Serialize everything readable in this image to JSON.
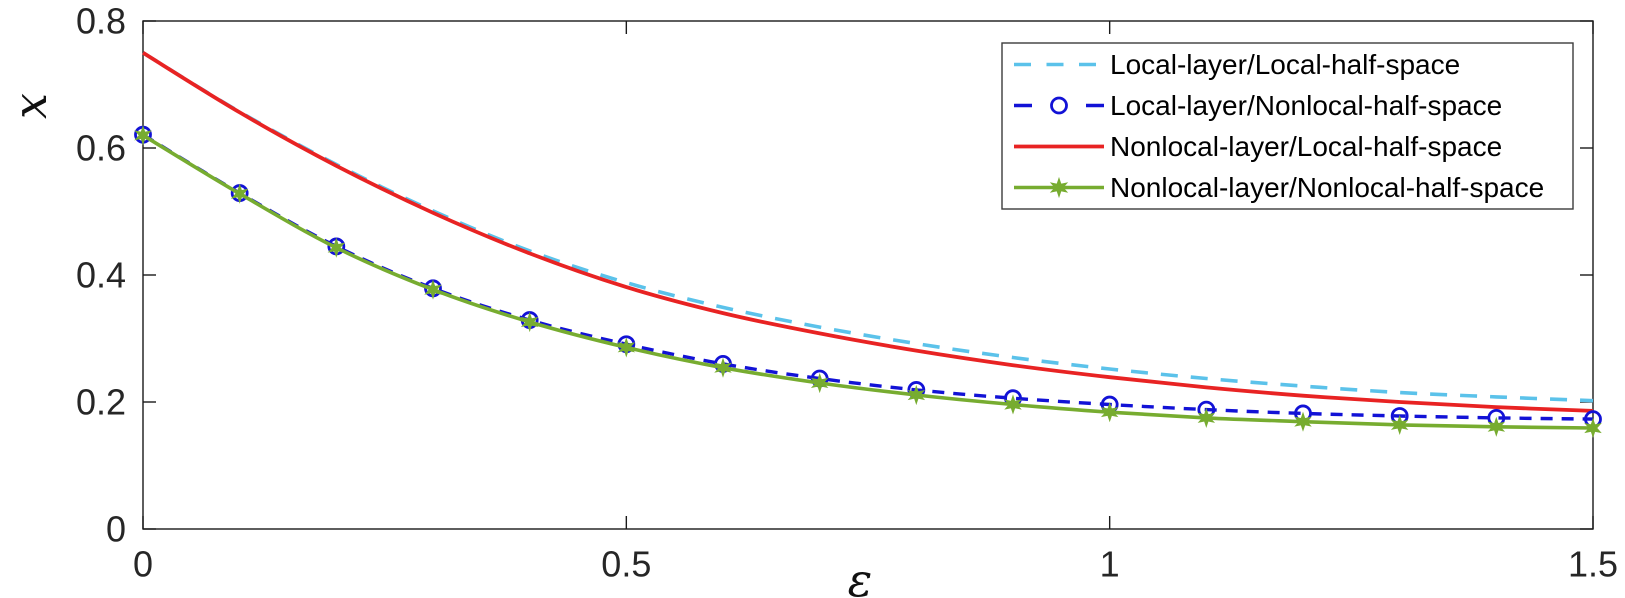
{
  "chart_data": {
    "type": "line",
    "title": "",
    "xlabel": "ε",
    "ylabel": "x",
    "xlim": [
      0,
      1.5
    ],
    "ylim": [
      0,
      0.8
    ],
    "xticks": [
      0,
      0.5,
      1,
      1.5
    ],
    "xtick_labels": [
      "0",
      "0.5",
      "1",
      "1.5"
    ],
    "yticks": [
      0,
      0.2,
      0.4,
      0.6,
      0.8
    ],
    "ytick_labels": [
      "0",
      "0.2",
      "0.4",
      "0.6",
      "0.8"
    ],
    "grid": false,
    "box": true,
    "axis_color": "#1a1a1a",
    "tick_label_color": "#262626",
    "background": "#ffffff",
    "legend": {
      "position": "top-right",
      "border_color": "#3c3c3c",
      "background": "#ffffff",
      "text_color": "#000000"
    },
    "x": [
      0,
      0.1,
      0.2,
      0.3,
      0.4,
      0.5,
      0.6,
      0.7,
      0.8,
      0.9,
      1.0,
      1.1,
      1.2,
      1.3,
      1.4,
      1.5
    ],
    "series": [
      {
        "name": "Local-layer/Local-half-space",
        "color": "#5BC2EA",
        "line_style": "dashed",
        "marker": "none",
        "values": [
          0.75,
          0.657,
          0.574,
          0.501,
          0.438,
          0.388,
          0.349,
          0.318,
          0.292,
          0.27,
          0.252,
          0.237,
          0.225,
          0.215,
          0.208,
          0.202
        ]
      },
      {
        "name": "Local-layer/Nonlocal-half-space",
        "color": "#1212D6",
        "line_style": "dashed",
        "marker": "circle",
        "values": [
          0.621,
          0.529,
          0.445,
          0.379,
          0.329,
          0.291,
          0.26,
          0.237,
          0.219,
          0.206,
          0.196,
          0.188,
          0.182,
          0.178,
          0.175,
          0.173
        ]
      },
      {
        "name": "Nonlocal-layer/Local-half-space",
        "color": "#E82323",
        "line_style": "solid",
        "marker": "none",
        "values": [
          0.75,
          0.656,
          0.572,
          0.498,
          0.434,
          0.381,
          0.34,
          0.308,
          0.281,
          0.258,
          0.239,
          0.223,
          0.21,
          0.2,
          0.192,
          0.186
        ]
      },
      {
        "name": "Nonlocal-layer/Nonlocal-half-space",
        "color": "#77AC30",
        "line_style": "solid",
        "marker": "star",
        "values": [
          0.62,
          0.528,
          0.443,
          0.377,
          0.326,
          0.286,
          0.254,
          0.23,
          0.211,
          0.196,
          0.184,
          0.175,
          0.169,
          0.164,
          0.161,
          0.159
        ]
      }
    ],
    "draw_order": [
      0,
      2,
      1,
      3
    ]
  }
}
